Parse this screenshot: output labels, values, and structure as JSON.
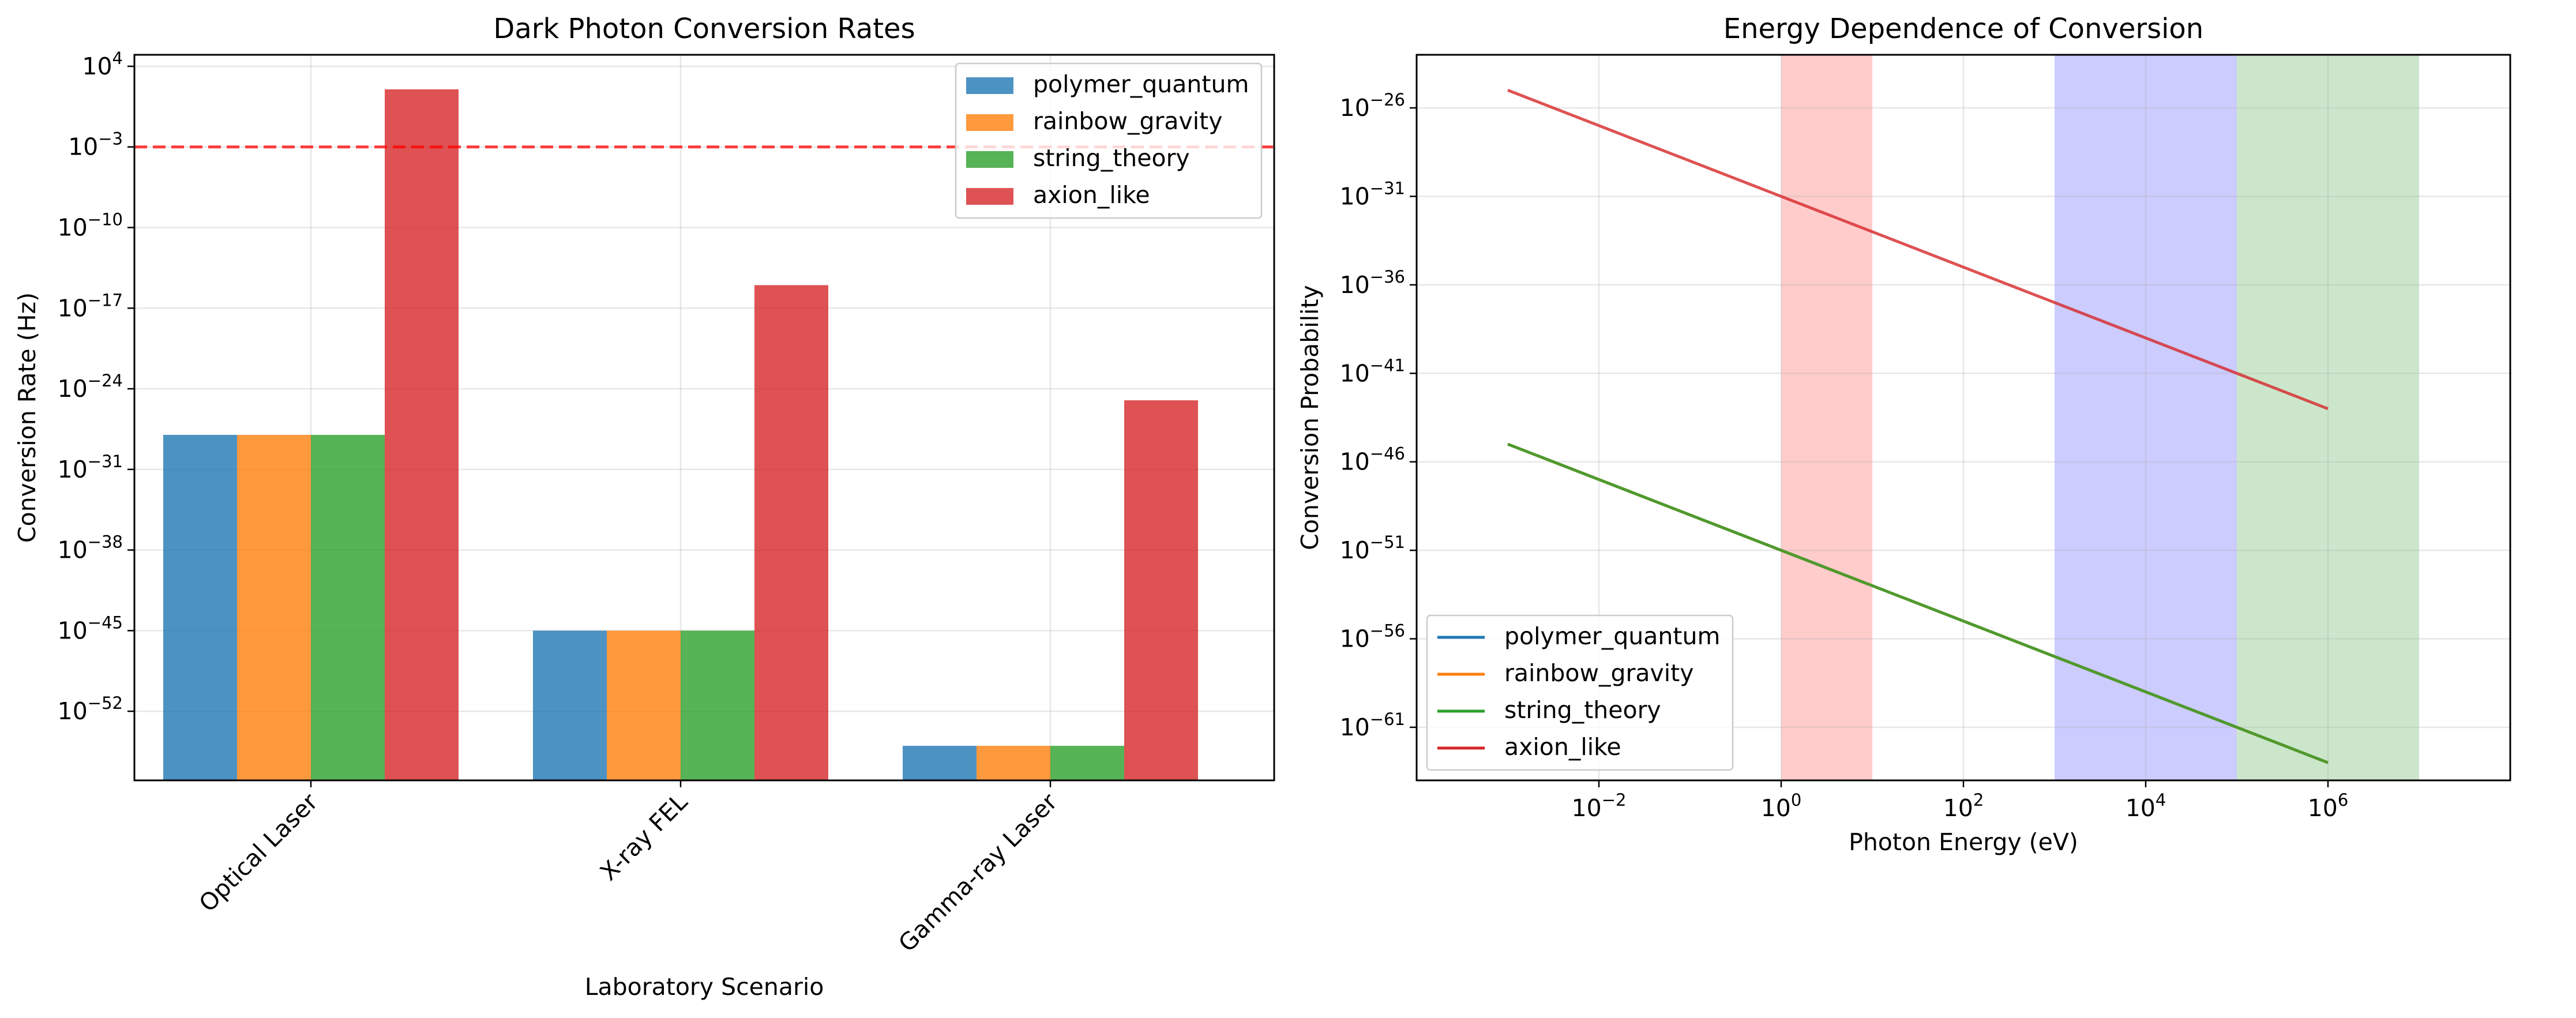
{
  "chart_data": [
    {
      "type": "bar",
      "title": "Dark Photon Conversion Rates",
      "xlabel": "Laboratory Scenario",
      "ylabel": "Conversion Rate (Hz)",
      "yscale": "log",
      "ylim": [
        1e-58,
        100000.0
      ],
      "yticks": [
        {
          "exp": "4",
          "value": 10000.0
        },
        {
          "exp": "−3",
          "value": 0.001
        },
        {
          "exp": "−10",
          "value": 1e-10
        },
        {
          "exp": "−17",
          "value": 1e-17
        },
        {
          "exp": "−24",
          "value": 1e-24
        },
        {
          "exp": "−31",
          "value": 1e-31
        },
        {
          "exp": "−38",
          "value": 1e-38
        },
        {
          "exp": "−45",
          "value": 1e-45
        },
        {
          "exp": "−52",
          "value": 1e-52
        }
      ],
      "categories": [
        "Optical Laser",
        "X-ray FEL",
        "Gamma-ray Laser"
      ],
      "series": [
        {
          "name": "polymer_quantum",
          "color": "#1f77b4",
          "values": [
            1e-28,
            1e-45,
            1e-55
          ]
        },
        {
          "name": "rainbow_gravity",
          "color": "#ff7f0e",
          "values": [
            1e-28,
            1e-45,
            1e-55
          ]
        },
        {
          "name": "string_theory",
          "color": "#2ca02c",
          "values": [
            1e-28,
            1e-45,
            1e-55
          ]
        },
        {
          "name": "axion_like",
          "color": "#d62728",
          "values": [
            100.0,
            1e-15,
            1e-25
          ]
        }
      ],
      "reference_line": {
        "value": 0.001,
        "color": "#ff0000",
        "style": "dashed"
      },
      "grid": true,
      "legend": "top-right"
    },
    {
      "type": "line",
      "title": "Energy Dependence of Conversion",
      "xlabel": "Photon Energy (eV)",
      "ylabel": "Conversion Probability",
      "xscale": "log",
      "yscale": "log",
      "xlim": [
        0.0001,
        100000000.0
      ],
      "ylim": [
        1e-64,
        1e-23
      ],
      "xticks": [
        {
          "exp": "−2",
          "value": 0.01
        },
        {
          "exp": "0",
          "value": 1.0
        },
        {
          "exp": "2",
          "value": 100.0
        },
        {
          "exp": "4",
          "value": 10000.0
        },
        {
          "exp": "6",
          "value": 1000000.0
        }
      ],
      "yticks": [
        {
          "exp": "−26",
          "value": 1e-26
        },
        {
          "exp": "−31",
          "value": 1e-31
        },
        {
          "exp": "−36",
          "value": 1e-36
        },
        {
          "exp": "−41",
          "value": 1e-41
        },
        {
          "exp": "−46",
          "value": 1e-46
        },
        {
          "exp": "−51",
          "value": 1e-51
        },
        {
          "exp": "−56",
          "value": 1e-56
        },
        {
          "exp": "−61",
          "value": 1e-61
        }
      ],
      "x": [
        0.001,
        1000000.0
      ],
      "series": [
        {
          "name": "polymer_quantum",
          "color": "#1f77b4",
          "values": [
            1e-45,
            1e-63
          ]
        },
        {
          "name": "rainbow_gravity",
          "color": "#ff7f0e",
          "values": [
            1e-45,
            1e-63
          ]
        },
        {
          "name": "string_theory",
          "color": "#2ca02c",
          "values": [
            1e-45,
            1e-63
          ]
        },
        {
          "name": "axion_like",
          "color": "#d62728",
          "values": [
            1e-25,
            1e-43
          ]
        }
      ],
      "bands": [
        {
          "x0": 1,
          "x1": 10,
          "color": "#ff0000"
        },
        {
          "x0": 1000,
          "x1": 100000,
          "color": "#0000ff"
        },
        {
          "x0": 100000,
          "x1": 10000000,
          "color": "#008000"
        }
      ],
      "grid": true,
      "legend": "bottom-left"
    }
  ]
}
